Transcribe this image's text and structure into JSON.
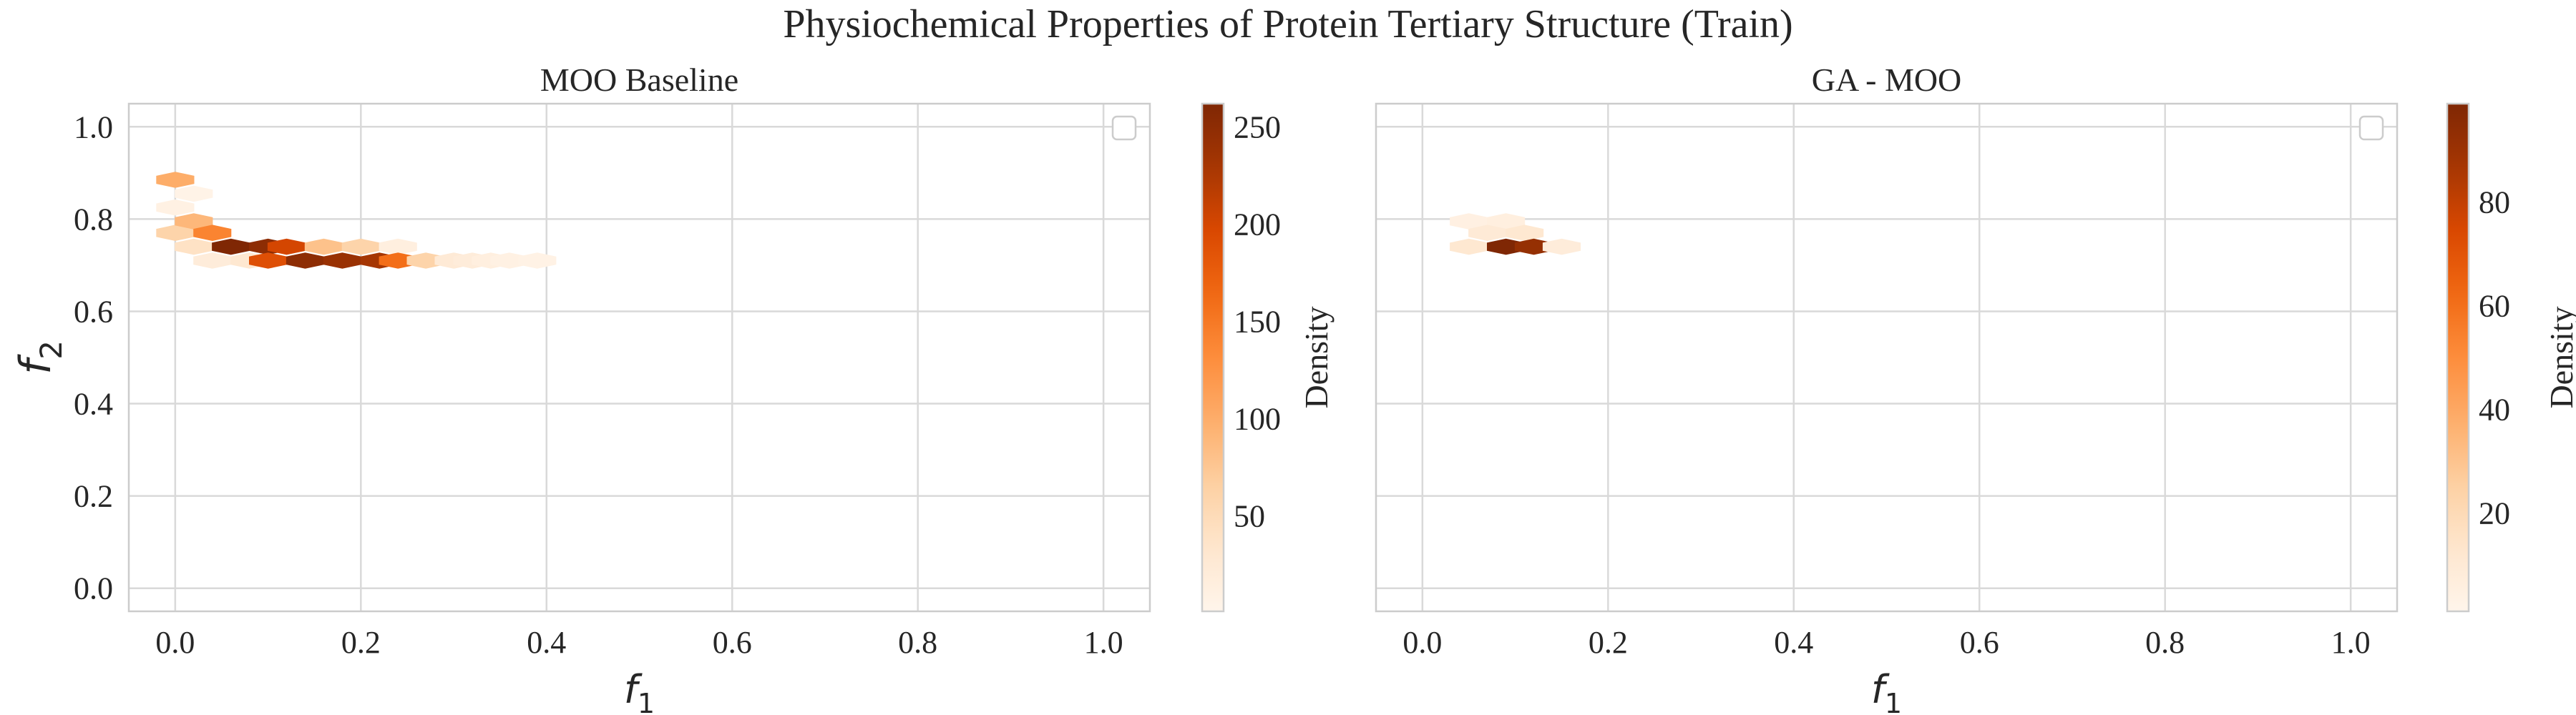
{
  "figure": {
    "title": "Physiochemical Properties of Protein Tertiary Structure (Train)"
  },
  "chart_data": [
    {
      "type": "heatmap",
      "subtype": "hexbin",
      "title": "MOO Baseline",
      "xlabel_base": "f",
      "xlabel_sub": "1",
      "ylabel_base": "f",
      "ylabel_sub": "2",
      "xlim": [
        -0.05,
        1.05
      ],
      "ylim": [
        -0.05,
        1.05
      ],
      "xticks": [
        0.0,
        0.2,
        0.4,
        0.6,
        0.8,
        1.0
      ],
      "xtick_labels": [
        "0.0",
        "0.2",
        "0.4",
        "0.6",
        "0.8",
        "1.0"
      ],
      "yticks": [
        0.0,
        0.2,
        0.4,
        0.6,
        0.8,
        1.0
      ],
      "ytick_labels": [
        "0.0",
        "0.2",
        "0.4",
        "0.6",
        "0.8",
        "1.0"
      ],
      "grid": true,
      "legend": "top-right (empty)",
      "colormap": "Oranges",
      "colorbar": {
        "label": "Density",
        "min": 1,
        "max": 262,
        "ticks": [
          50,
          100,
          150,
          200,
          250
        ],
        "tick_labels": [
          "50",
          "100",
          "150",
          "200",
          "250"
        ]
      },
      "bins": [
        {
          "x": 0.0,
          "y": 0.885,
          "density": 100
        },
        {
          "x": 0.0,
          "y": 0.825,
          "density": 10
        },
        {
          "x": 0.02,
          "y": 0.855,
          "density": 5
        },
        {
          "x": 0.0,
          "y": 0.77,
          "density": 60
        },
        {
          "x": 0.02,
          "y": 0.795,
          "density": 90
        },
        {
          "x": 0.04,
          "y": 0.77,
          "density": 140
        },
        {
          "x": 0.02,
          "y": 0.74,
          "density": 40
        },
        {
          "x": 0.06,
          "y": 0.74,
          "density": 262
        },
        {
          "x": 0.1,
          "y": 0.74,
          "density": 250
        },
        {
          "x": 0.04,
          "y": 0.71,
          "density": 20
        },
        {
          "x": 0.08,
          "y": 0.71,
          "density": 30
        },
        {
          "x": 0.1,
          "y": 0.71,
          "density": 190
        },
        {
          "x": 0.12,
          "y": 0.74,
          "density": 200
        },
        {
          "x": 0.14,
          "y": 0.71,
          "density": 250
        },
        {
          "x": 0.16,
          "y": 0.74,
          "density": 80
        },
        {
          "x": 0.18,
          "y": 0.71,
          "density": 240
        },
        {
          "x": 0.2,
          "y": 0.74,
          "density": 60
        },
        {
          "x": 0.22,
          "y": 0.71,
          "density": 230
        },
        {
          "x": 0.24,
          "y": 0.74,
          "density": 15
        },
        {
          "x": 0.24,
          "y": 0.71,
          "density": 160
        },
        {
          "x": 0.27,
          "y": 0.71,
          "density": 60
        },
        {
          "x": 0.3,
          "y": 0.71,
          "density": 25
        },
        {
          "x": 0.32,
          "y": 0.71,
          "density": 20
        },
        {
          "x": 0.34,
          "y": 0.71,
          "density": 15
        },
        {
          "x": 0.36,
          "y": 0.71,
          "density": 10
        },
        {
          "x": 0.39,
          "y": 0.71,
          "density": 8
        }
      ]
    },
    {
      "type": "heatmap",
      "subtype": "hexbin",
      "title": "GA - MOO",
      "xlabel_base": "f",
      "xlabel_sub": "1",
      "ylabel_base": "",
      "ylabel_sub": "",
      "xlim": [
        -0.05,
        1.05
      ],
      "ylim": [
        -0.05,
        1.05
      ],
      "xticks": [
        0.0,
        0.2,
        0.4,
        0.6,
        0.8,
        1.0
      ],
      "xtick_labels": [
        "0.0",
        "0.2",
        "0.4",
        "0.6",
        "0.8",
        "1.0"
      ],
      "yticks": [
        0.0,
        0.2,
        0.4,
        0.6,
        0.8,
        1.0
      ],
      "ytick_labels": [],
      "grid": true,
      "legend": "top-right (empty)",
      "colormap": "Oranges",
      "colorbar": {
        "label": "Density",
        "min": 1,
        "max": 99,
        "ticks": [
          20,
          40,
          60,
          80
        ],
        "tick_labels": [
          "20",
          "40",
          "60",
          "80"
        ]
      },
      "bins": [
        {
          "x": 0.05,
          "y": 0.795,
          "density": 5
        },
        {
          "x": 0.09,
          "y": 0.795,
          "density": 6
        },
        {
          "x": 0.07,
          "y": 0.77,
          "density": 10
        },
        {
          "x": 0.11,
          "y": 0.77,
          "density": 12
        },
        {
          "x": 0.05,
          "y": 0.74,
          "density": 12
        },
        {
          "x": 0.09,
          "y": 0.74,
          "density": 99
        },
        {
          "x": 0.12,
          "y": 0.74,
          "density": 92
        },
        {
          "x": 0.15,
          "y": 0.74,
          "density": 8
        }
      ]
    }
  ]
}
